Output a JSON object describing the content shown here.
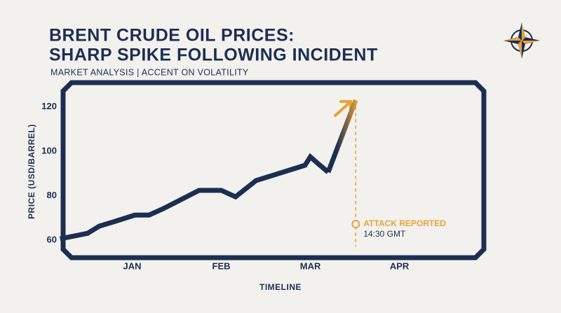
{
  "chart_data": {
    "type": "line",
    "title": [
      "BRENT CRUDE OIL PRICES:",
      "SHARP SPIKE FOLLOWING INCIDENT"
    ],
    "subtitle": "MARKET ANALYSIS | ACCENT ON VOLATILITY",
    "y_label": "PRICE (USD/BARREL)",
    "x_label": "TIMELINE",
    "x": [
      0.19,
      0.5,
      0.63,
      0.81,
      1.03,
      1.19,
      1.35,
      1.75,
      2.0,
      2.16,
      2.39,
      2.94,
      3.0,
      3.09,
      3.2,
      3.51
    ],
    "series": [
      {
        "color": "#1c2f52",
        "values": [
          60.6,
          63.1,
          66.3,
          68.5,
          71.3,
          71.3,
          74.2,
          82.4,
          82.4,
          79.5,
          86.8,
          93.7,
          97.5,
          94.3,
          90.6,
          null
        ]
      },
      {
        "color": "#e8a23a",
        "values": [
          null,
          null,
          null,
          null,
          null,
          null,
          null,
          null,
          null,
          null,
          null,
          null,
          null,
          null,
          90.6,
          123.0
        ]
      }
    ],
    "xlim": [
      0.15,
      4.72
    ],
    "ylim": [
      57,
      127
    ],
    "xticks": [
      {
        "value": 1,
        "label": "JAN"
      },
      {
        "value": 2,
        "label": "FEB"
      },
      {
        "value": 3,
        "label": "MAR"
      },
      {
        "value": 4,
        "label": "APR"
      }
    ],
    "yticks": [
      60,
      80,
      100,
      120
    ],
    "annotation": {
      "x": 3.51,
      "label": "ATTACK REPORTED",
      "sublabel": "14:30 GMT"
    }
  }
}
